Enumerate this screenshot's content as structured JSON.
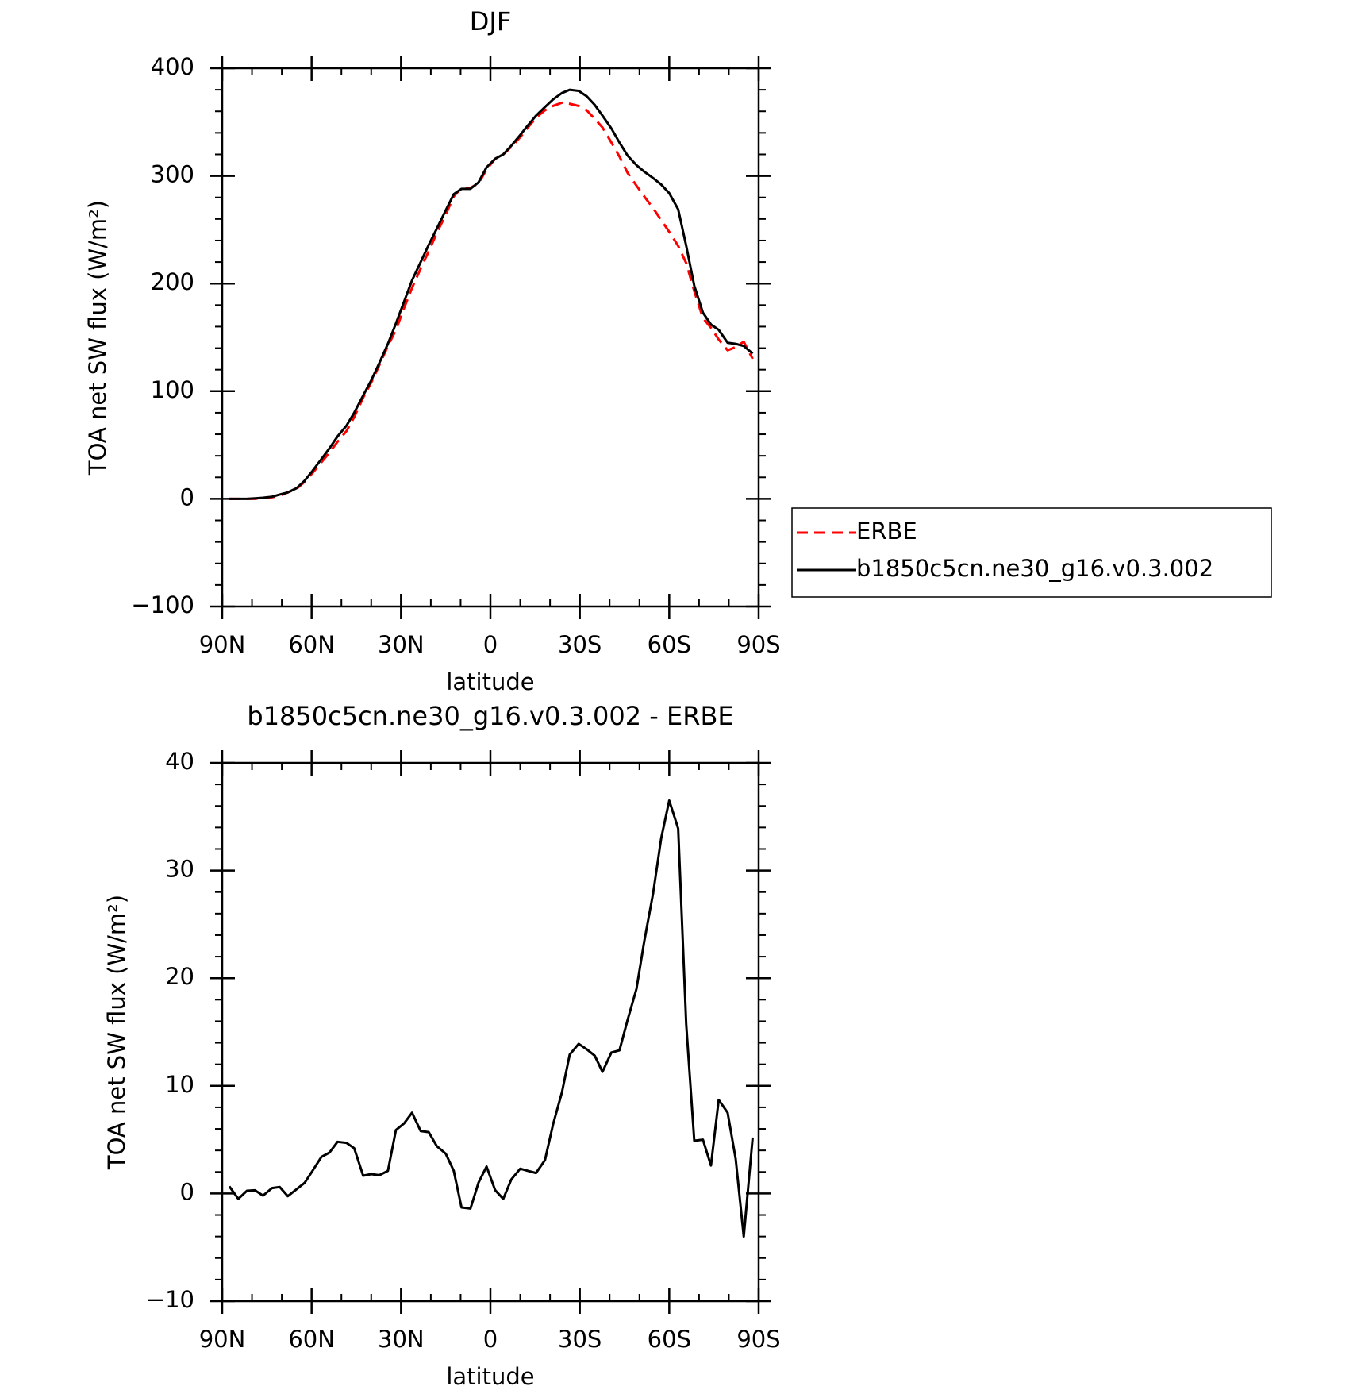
{
  "chart_data": [
    {
      "type": "line",
      "title": "DJF",
      "xlabel": "latitude",
      "ylabel": "TOA net SW flux (W/m²)",
      "x": [
        87.6,
        84.6,
        81.7,
        79,
        76.3,
        73.3,
        70.7,
        68,
        65,
        62.3,
        59.7,
        56.7,
        54,
        51.3,
        48.3,
        45.7,
        42.7,
        40,
        37.3,
        34.4,
        31.7,
        29,
        26.3,
        23.4,
        20.7,
        18,
        15,
        12.3,
        9.7,
        6.7,
        4,
        1.3,
        -1.6,
        -4.3,
        -7,
        -10,
        -12.6,
        -15.3,
        -18.3,
        -21,
        -24,
        -26.6,
        -29.6,
        -32.3,
        -35,
        -37.6,
        -40.6,
        -43.3,
        -46,
        -49,
        -51.6,
        -54.6,
        -57.3,
        -60,
        -63,
        -65.7,
        -68.4,
        -71.3,
        -74,
        -76.6,
        -79.6,
        -82.3,
        -85,
        -88
      ],
      "series": [
        {
          "name": "ERBE",
          "color": "#ff0000",
          "dash": true,
          "values": [
            0,
            0,
            0,
            0,
            1,
            1.5,
            3,
            6,
            9.5,
            16,
            24,
            34,
            43,
            53,
            63,
            76,
            94,
            108,
            124,
            142,
            157,
            177,
            196,
            214,
            230,
            247,
            264,
            281,
            289,
            289,
            293,
            306,
            316,
            320,
            327,
            336,
            345,
            354,
            361,
            365,
            368,
            367,
            365,
            361,
            353,
            345,
            331,
            318,
            303,
            291,
            281,
            270,
            259,
            248,
            235,
            219,
            193,
            168,
            159,
            148,
            138,
            141,
            146,
            130
          ]
        },
        {
          "name": "b1850c5cn.ne30_g16.v0.3.002",
          "color": "#000000",
          "dash": false,
          "values": [
            0,
            0,
            0,
            0.5,
            1,
            2,
            4,
            6,
            10,
            17,
            26,
            37,
            47,
            58,
            68,
            80,
            96,
            110,
            126,
            144,
            163,
            183,
            203,
            220,
            236,
            251,
            268,
            283,
            288,
            288,
            294,
            308,
            316,
            320,
            328,
            338,
            347,
            356,
            364,
            371,
            377,
            380,
            379,
            374,
            366,
            356,
            344,
            331,
            319,
            310,
            304,
            298,
            292,
            284,
            269,
            235,
            198,
            173,
            162,
            157,
            145,
            144,
            142,
            135
          ]
        }
      ],
      "xlim": [
        90,
        -90
      ],
      "xticks": [
        {
          "value": 90,
          "label": "90N"
        },
        {
          "value": 60,
          "label": "60N"
        },
        {
          "value": 30,
          "label": "30N"
        },
        0,
        {
          "value": -30,
          "label": "30S"
        },
        {
          "value": -60,
          "label": "60S"
        },
        {
          "value": -90,
          "label": "90S"
        }
      ],
      "xminorticks": [
        80,
        70,
        50,
        40,
        20,
        10,
        -10,
        -20,
        -40,
        -50,
        -70,
        -80
      ],
      "ylim": [
        -100,
        400
      ],
      "yticks": [
        {
          "value": -100,
          "label": "−100"
        },
        0,
        100,
        200,
        300,
        400
      ],
      "yminorticks": [
        -80,
        -60,
        -40,
        -20,
        20,
        40,
        60,
        80,
        120,
        140,
        160,
        180,
        220,
        240,
        260,
        280,
        320,
        340,
        360,
        380
      ],
      "legend": "right"
    },
    {
      "type": "line",
      "title": "b1850c5cn.ne30_g16.v0.3.002 - ERBE",
      "xlabel": "latitude",
      "ylabel": "TOA net SW flux (W/m²)",
      "x": [
        87.6,
        84.6,
        81.7,
        79,
        76.3,
        73.3,
        70.7,
        68,
        65,
        62.3,
        59.7,
        56.7,
        54,
        51.3,
        48.3,
        45.7,
        42.7,
        40,
        37.3,
        34.4,
        31.7,
        29,
        26.3,
        23.4,
        20.7,
        18,
        15,
        12.3,
        9.7,
        6.7,
        4,
        1.3,
        -1.6,
        -4.3,
        -7,
        -10,
        -12.6,
        -15.3,
        -18.3,
        -21,
        -24,
        -26.6,
        -29.6,
        -32.3,
        -35,
        -37.6,
        -40.6,
        -43.3,
        -46,
        -49,
        -51.6,
        -54.6,
        -57.3,
        -60,
        -63,
        -65.7,
        -68.4,
        -71.3,
        -74,
        -76.6,
        -79.6,
        -82.3,
        -85,
        -88
      ],
      "color": "#000000",
      "values": [
        0.66,
        -0.5,
        0.25,
        0.3,
        -0.2,
        0.5,
        0.6,
        -0.25,
        0.4,
        1.0,
        2.1,
        3.4,
        3.8,
        4.8,
        4.7,
        4.2,
        1.65,
        1.8,
        1.7,
        2.1,
        5.9,
        6.5,
        7.5,
        5.8,
        5.7,
        4.4,
        3.7,
        2.1,
        -1.3,
        -1.4,
        1.0,
        2.5,
        0.3,
        -0.5,
        1.3,
        2.3,
        2.1,
        1.9,
        3.1,
        6.4,
        9.4,
        12.9,
        13.9,
        13.4,
        12.8,
        11.3,
        13.1,
        13.3,
        16.1,
        19.0,
        23.4,
        27.9,
        33,
        36.5,
        33.9,
        15.7,
        4.9,
        5.0,
        2.6,
        8.7,
        7.5,
        3.2,
        -4.0,
        5.2
      ],
      "xlim": [
        90,
        -90
      ],
      "xticks": [
        {
          "value": 90,
          "label": "90N"
        },
        {
          "value": 60,
          "label": "60N"
        },
        {
          "value": 30,
          "label": "30N"
        },
        0,
        {
          "value": -30,
          "label": "30S"
        },
        {
          "value": -60,
          "label": "60S"
        },
        {
          "value": -90,
          "label": "90S"
        }
      ],
      "xminorticks": [
        80,
        70,
        50,
        40,
        20,
        10,
        -10,
        -20,
        -40,
        -50,
        -70,
        -80
      ],
      "ylim": [
        -10,
        40
      ],
      "yticks": [
        {
          "value": -10,
          "label": "−10"
        },
        0,
        10,
        20,
        30,
        40
      ],
      "yminorticks": [
        -8,
        -6,
        -4,
        -2,
        2,
        4,
        6,
        8,
        12,
        14,
        16,
        18,
        22,
        24,
        26,
        28,
        32,
        34,
        36,
        38
      ]
    }
  ]
}
